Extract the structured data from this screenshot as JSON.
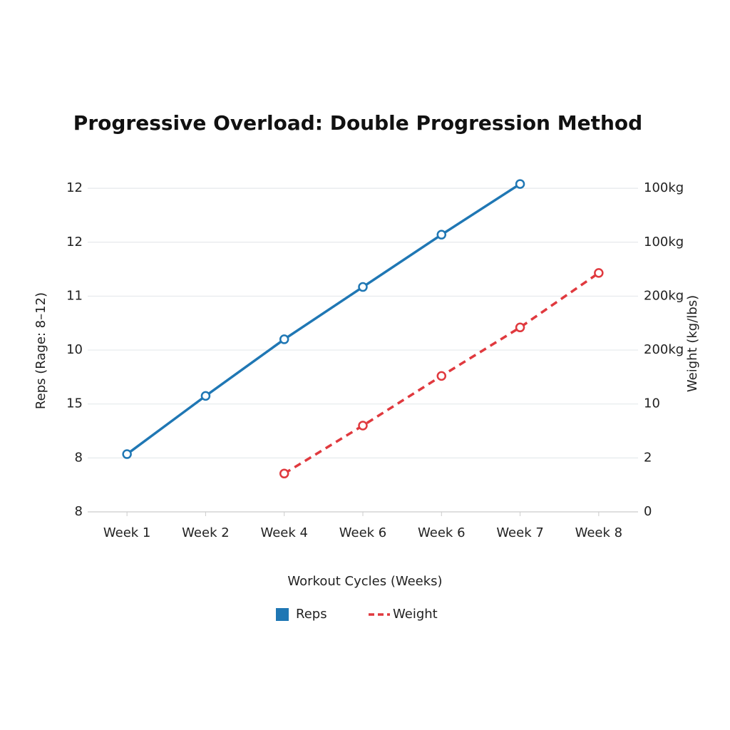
{
  "chart_data": {
    "type": "line",
    "title": "Progressive Overload: Double Progression Method",
    "xlabel": "Workout Cycles (Weeks)",
    "ylabel": "Reps (Rage: 8–12)",
    "y2label": "Weight (kg/lbs)",
    "categories": [
      "Week 1",
      "Week 2",
      "Week 4",
      "Week 6",
      "Week 6",
      "Week 7",
      "Week 8"
    ],
    "series": [
      {
        "name": "Reps",
        "color": "#1f77b4",
        "dashed": false,
        "axis": "y",
        "values": [
          1.07,
          2.15,
          3.2,
          4.17,
          5.14,
          6.08,
          null
        ]
      },
      {
        "name": "Weight",
        "color": "#e0393e",
        "dashed": true,
        "axis": "y2",
        "values": [
          null,
          null,
          0.71,
          1.6,
          2.52,
          3.42,
          4.43
        ]
      }
    ],
    "ylim": [
      0,
      6.2
    ],
    "yticks": [
      {
        "value": 0,
        "label": "8"
      },
      {
        "value": 1,
        "label": "8"
      },
      {
        "value": 2,
        "label": "15"
      },
      {
        "value": 3,
        "label": "10"
      },
      {
        "value": 4,
        "label": "11"
      },
      {
        "value": 5,
        "label": "12"
      },
      {
        "value": 6,
        "label": "12"
      }
    ],
    "y2lim": [
      0,
      6.2
    ],
    "y2ticks": [
      0,
      {
        "value": 1,
        "label": "2"
      },
      {
        "value": 2,
        "label": "10"
      },
      {
        "value": 3,
        "label": "200kg"
      },
      {
        "value": 4,
        "label": "200kg"
      },
      {
        "value": 5,
        "label": "100kg"
      },
      {
        "value": 6,
        "label": "100kg"
      }
    ],
    "grid": true,
    "legend": "bottom"
  }
}
